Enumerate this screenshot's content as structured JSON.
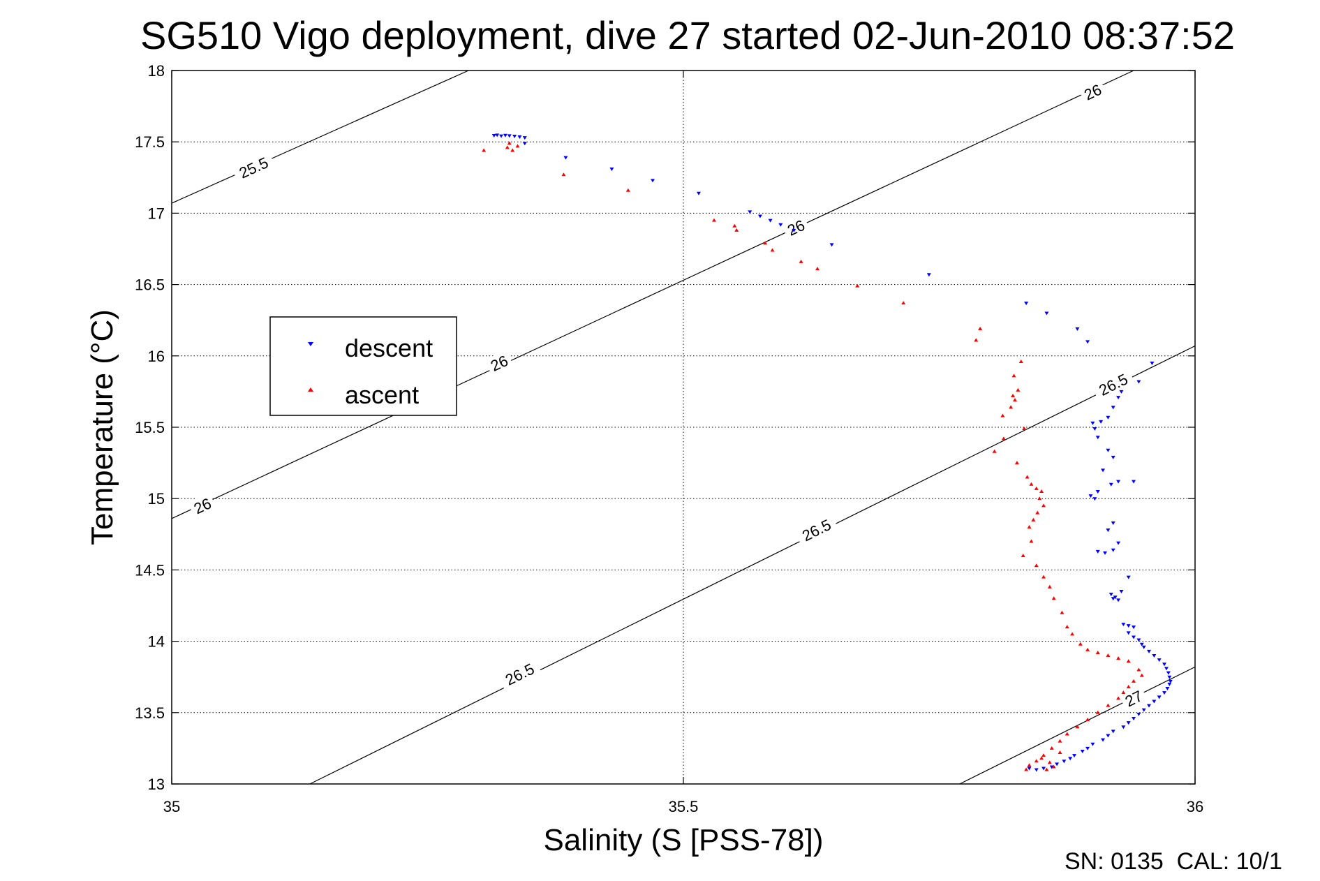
{
  "chart_data": {
    "type": "scatter",
    "title": "SG510 Vigo deployment, dive 27 started 02-Jun-2010 08:37:52",
    "xlabel": "Salinity (S [PSS-78])",
    "ylabel": "Temperature (°C)",
    "xlim": [
      35,
      36
    ],
    "ylim": [
      13,
      18
    ],
    "xticks": [
      35,
      35.5,
      36
    ],
    "yticks": [
      13,
      13.5,
      14,
      14.5,
      15,
      15.5,
      16,
      16.5,
      17,
      17.5,
      18
    ],
    "xtick_labels": [
      "35",
      "35.5",
      "36"
    ],
    "ytick_labels": [
      "13",
      "13.5",
      "14",
      "14.5",
      "15",
      "15.5",
      "16",
      "16.5",
      "17",
      "17.5",
      "18"
    ],
    "grid": true,
    "legend_position": "center-left",
    "footer": "SN: 0135  CAL: 10/1",
    "density_contours": [
      {
        "label": "25.5",
        "points": [
          [
            35.0,
            17.07
          ],
          [
            35.29,
            18.0
          ]
        ],
        "labels_at": [
          [
            35.08,
            17.32
          ]
        ]
      },
      {
        "label": "26",
        "points": [
          [
            35.0,
            14.86
          ],
          [
            35.94,
            18.0
          ]
        ],
        "labels_at": [
          [
            35.03,
            14.95
          ],
          [
            35.32,
            15.95
          ],
          [
            35.61,
            16.9
          ],
          [
            35.9,
            17.85
          ]
        ]
      },
      {
        "label": "26.5",
        "points": [
          [
            35.135,
            13.0
          ],
          [
            36.0,
            16.07
          ]
        ],
        "labels_at": [
          [
            35.34,
            13.77
          ],
          [
            35.63,
            14.78
          ],
          [
            35.92,
            15.8
          ]
        ]
      },
      {
        "label": "27",
        "points": [
          [
            35.77,
            13.0
          ],
          [
            36.0,
            13.82
          ]
        ],
        "labels_at": [
          [
            35.94,
            13.6
          ]
        ]
      }
    ],
    "series": [
      {
        "name": "descent",
        "color": "#0000ff",
        "marker": "triangle-down",
        "points": [
          [
            35.315,
            17.545
          ],
          [
            35.318,
            17.548
          ],
          [
            35.322,
            17.542
          ],
          [
            35.326,
            17.546
          ],
          [
            35.33,
            17.543
          ],
          [
            35.335,
            17.54
          ],
          [
            35.34,
            17.535
          ],
          [
            35.345,
            17.53
          ],
          [
            35.345,
            17.49
          ],
          [
            35.385,
            17.39
          ],
          [
            35.43,
            17.31
          ],
          [
            35.47,
            17.23
          ],
          [
            35.515,
            17.14
          ],
          [
            35.565,
            17.01
          ],
          [
            35.575,
            16.98
          ],
          [
            35.585,
            16.95
          ],
          [
            35.595,
            16.92
          ],
          [
            35.608,
            16.88
          ],
          [
            35.645,
            16.78
          ],
          [
            35.74,
            16.57
          ],
          [
            35.835,
            16.37
          ],
          [
            35.855,
            16.3
          ],
          [
            35.885,
            16.19
          ],
          [
            35.895,
            16.1
          ],
          [
            35.958,
            15.95
          ],
          [
            35.945,
            15.82
          ],
          [
            35.928,
            15.75
          ],
          [
            35.925,
            15.71
          ],
          [
            35.92,
            15.64
          ],
          [
            35.915,
            15.57
          ],
          [
            35.908,
            15.54
          ],
          [
            35.902,
            15.49
          ],
          [
            35.9,
            15.53
          ],
          [
            35.905,
            15.43
          ],
          [
            35.915,
            15.34
          ],
          [
            35.92,
            15.29
          ],
          [
            35.91,
            15.2
          ],
          [
            35.925,
            15.12
          ],
          [
            35.918,
            15.1
          ],
          [
            35.94,
            15.12
          ],
          [
            35.905,
            15.05
          ],
          [
            35.898,
            15.02
          ],
          [
            35.902,
            15.0
          ],
          [
            35.92,
            14.83
          ],
          [
            35.915,
            14.78
          ],
          [
            35.925,
            14.69
          ],
          [
            35.92,
            14.64
          ],
          [
            35.912,
            14.62
          ],
          [
            35.905,
            14.63
          ],
          [
            35.935,
            14.45
          ],
          [
            35.918,
            14.33
          ],
          [
            35.922,
            14.31
          ],
          [
            35.925,
            14.29
          ],
          [
            35.928,
            14.35
          ],
          [
            35.92,
            14.3
          ],
          [
            35.93,
            14.12
          ],
          [
            35.935,
            14.11
          ],
          [
            35.94,
            14.1
          ],
          [
            35.935,
            14.06
          ],
          [
            35.94,
            14.03
          ],
          [
            35.945,
            14.01
          ],
          [
            35.948,
            13.98
          ],
          [
            35.95,
            13.96
          ],
          [
            35.955,
            13.93
          ],
          [
            35.96,
            13.9
          ],
          [
            35.965,
            13.87
          ],
          [
            35.97,
            13.84
          ],
          [
            35.972,
            13.81
          ],
          [
            35.974,
            13.78
          ],
          [
            35.975,
            13.75
          ],
          [
            35.976,
            13.72
          ],
          [
            35.975,
            13.7
          ],
          [
            35.973,
            13.67
          ],
          [
            35.97,
            13.64
          ],
          [
            35.965,
            13.61
          ],
          [
            35.96,
            13.58
          ],
          [
            35.955,
            13.55
          ],
          [
            35.95,
            13.52
          ],
          [
            35.945,
            13.49
          ],
          [
            35.94,
            13.46
          ],
          [
            35.935,
            13.43
          ],
          [
            35.93,
            13.4
          ],
          [
            35.92,
            13.37
          ],
          [
            35.915,
            13.34
          ],
          [
            35.91,
            13.31
          ],
          [
            35.9,
            13.28
          ],
          [
            35.895,
            13.25
          ],
          [
            35.89,
            13.23
          ],
          [
            35.882,
            13.2
          ],
          [
            35.878,
            13.18
          ],
          [
            35.872,
            13.16
          ],
          [
            35.865,
            13.14
          ],
          [
            35.86,
            13.12
          ],
          [
            35.852,
            13.11
          ],
          [
            35.845,
            13.1
          ],
          [
            35.838,
            13.11
          ]
        ]
      },
      {
        "name": "ascent",
        "color": "#ff0000",
        "marker": "triangle-up",
        "points": [
          [
            35.305,
            17.44
          ],
          [
            35.328,
            17.46
          ],
          [
            35.33,
            17.49
          ],
          [
            35.333,
            17.44
          ],
          [
            35.338,
            17.47
          ],
          [
            35.383,
            17.27
          ],
          [
            35.446,
            17.16
          ],
          [
            35.53,
            16.95
          ],
          [
            35.55,
            16.91
          ],
          [
            35.552,
            16.88
          ],
          [
            35.58,
            16.79
          ],
          [
            35.587,
            16.74
          ],
          [
            35.615,
            16.66
          ],
          [
            35.631,
            16.61
          ],
          [
            35.67,
            16.49
          ],
          [
            35.715,
            16.37
          ],
          [
            35.79,
            16.19
          ],
          [
            35.786,
            16.11
          ],
          [
            35.83,
            15.96
          ],
          [
            35.823,
            15.86
          ],
          [
            35.827,
            15.76
          ],
          [
            35.822,
            15.72
          ],
          [
            35.824,
            15.69
          ],
          [
            35.82,
            15.64
          ],
          [
            35.812,
            15.58
          ],
          [
            35.833,
            15.49
          ],
          [
            35.813,
            15.42
          ],
          [
            35.804,
            15.33
          ],
          [
            35.826,
            15.25
          ],
          [
            35.836,
            15.15
          ],
          [
            35.84,
            15.1
          ],
          [
            35.845,
            15.07
          ],
          [
            35.85,
            15.05
          ],
          [
            35.848,
            15.0
          ],
          [
            35.852,
            14.95
          ],
          [
            35.846,
            14.9
          ],
          [
            35.842,
            14.85
          ],
          [
            35.838,
            14.8
          ],
          [
            35.84,
            14.7
          ],
          [
            35.832,
            14.6
          ],
          [
            35.845,
            14.53
          ],
          [
            35.852,
            14.45
          ],
          [
            35.858,
            14.38
          ],
          [
            35.862,
            14.3
          ],
          [
            35.87,
            14.2
          ],
          [
            35.875,
            14.1
          ],
          [
            35.88,
            14.05
          ],
          [
            35.888,
            13.98
          ],
          [
            35.895,
            13.94
          ],
          [
            35.905,
            13.92
          ],
          [
            35.915,
            13.9
          ],
          [
            35.925,
            13.88
          ],
          [
            35.935,
            13.86
          ],
          [
            35.945,
            13.8
          ],
          [
            35.948,
            13.76
          ],
          [
            35.94,
            13.72
          ],
          [
            35.935,
            13.68
          ],
          [
            35.93,
            13.64
          ],
          [
            35.925,
            13.6
          ],
          [
            35.915,
            13.55
          ],
          [
            35.905,
            13.5
          ],
          [
            35.895,
            13.45
          ],
          [
            35.885,
            13.4
          ],
          [
            35.875,
            13.35
          ],
          [
            35.868,
            13.3
          ],
          [
            35.86,
            13.25
          ],
          [
            35.852,
            13.2
          ],
          [
            35.845,
            13.16
          ],
          [
            35.838,
            13.13
          ],
          [
            35.835,
            13.1
          ],
          [
            35.855,
            13.1
          ],
          [
            35.862,
            13.12
          ],
          [
            35.858,
            13.15
          ],
          [
            35.868,
            13.22
          ],
          [
            35.85,
            13.18
          ]
        ]
      }
    ]
  }
}
